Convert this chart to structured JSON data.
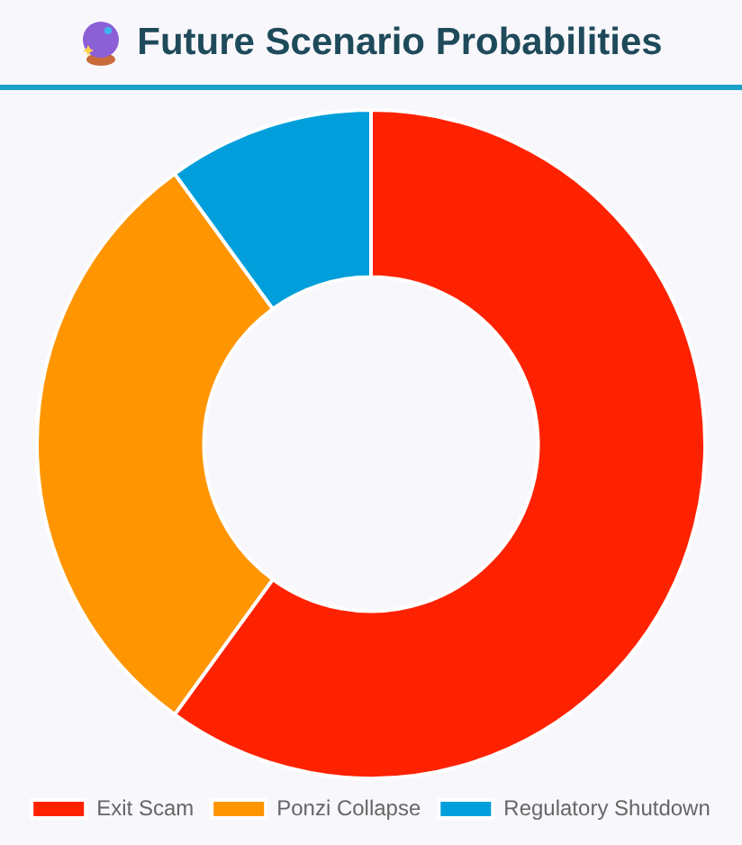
{
  "chart_data": {
    "type": "donut",
    "title": "Future Scenario Probabilities",
    "categories": [
      "Exit Scam",
      "Ponzi Collapse",
      "Regulatory Shutdown"
    ],
    "values": [
      60,
      30,
      10
    ],
    "colors": [
      "#ff2200",
      "#ff9500",
      "#009fdb"
    ],
    "legend": "bottom"
  }
}
